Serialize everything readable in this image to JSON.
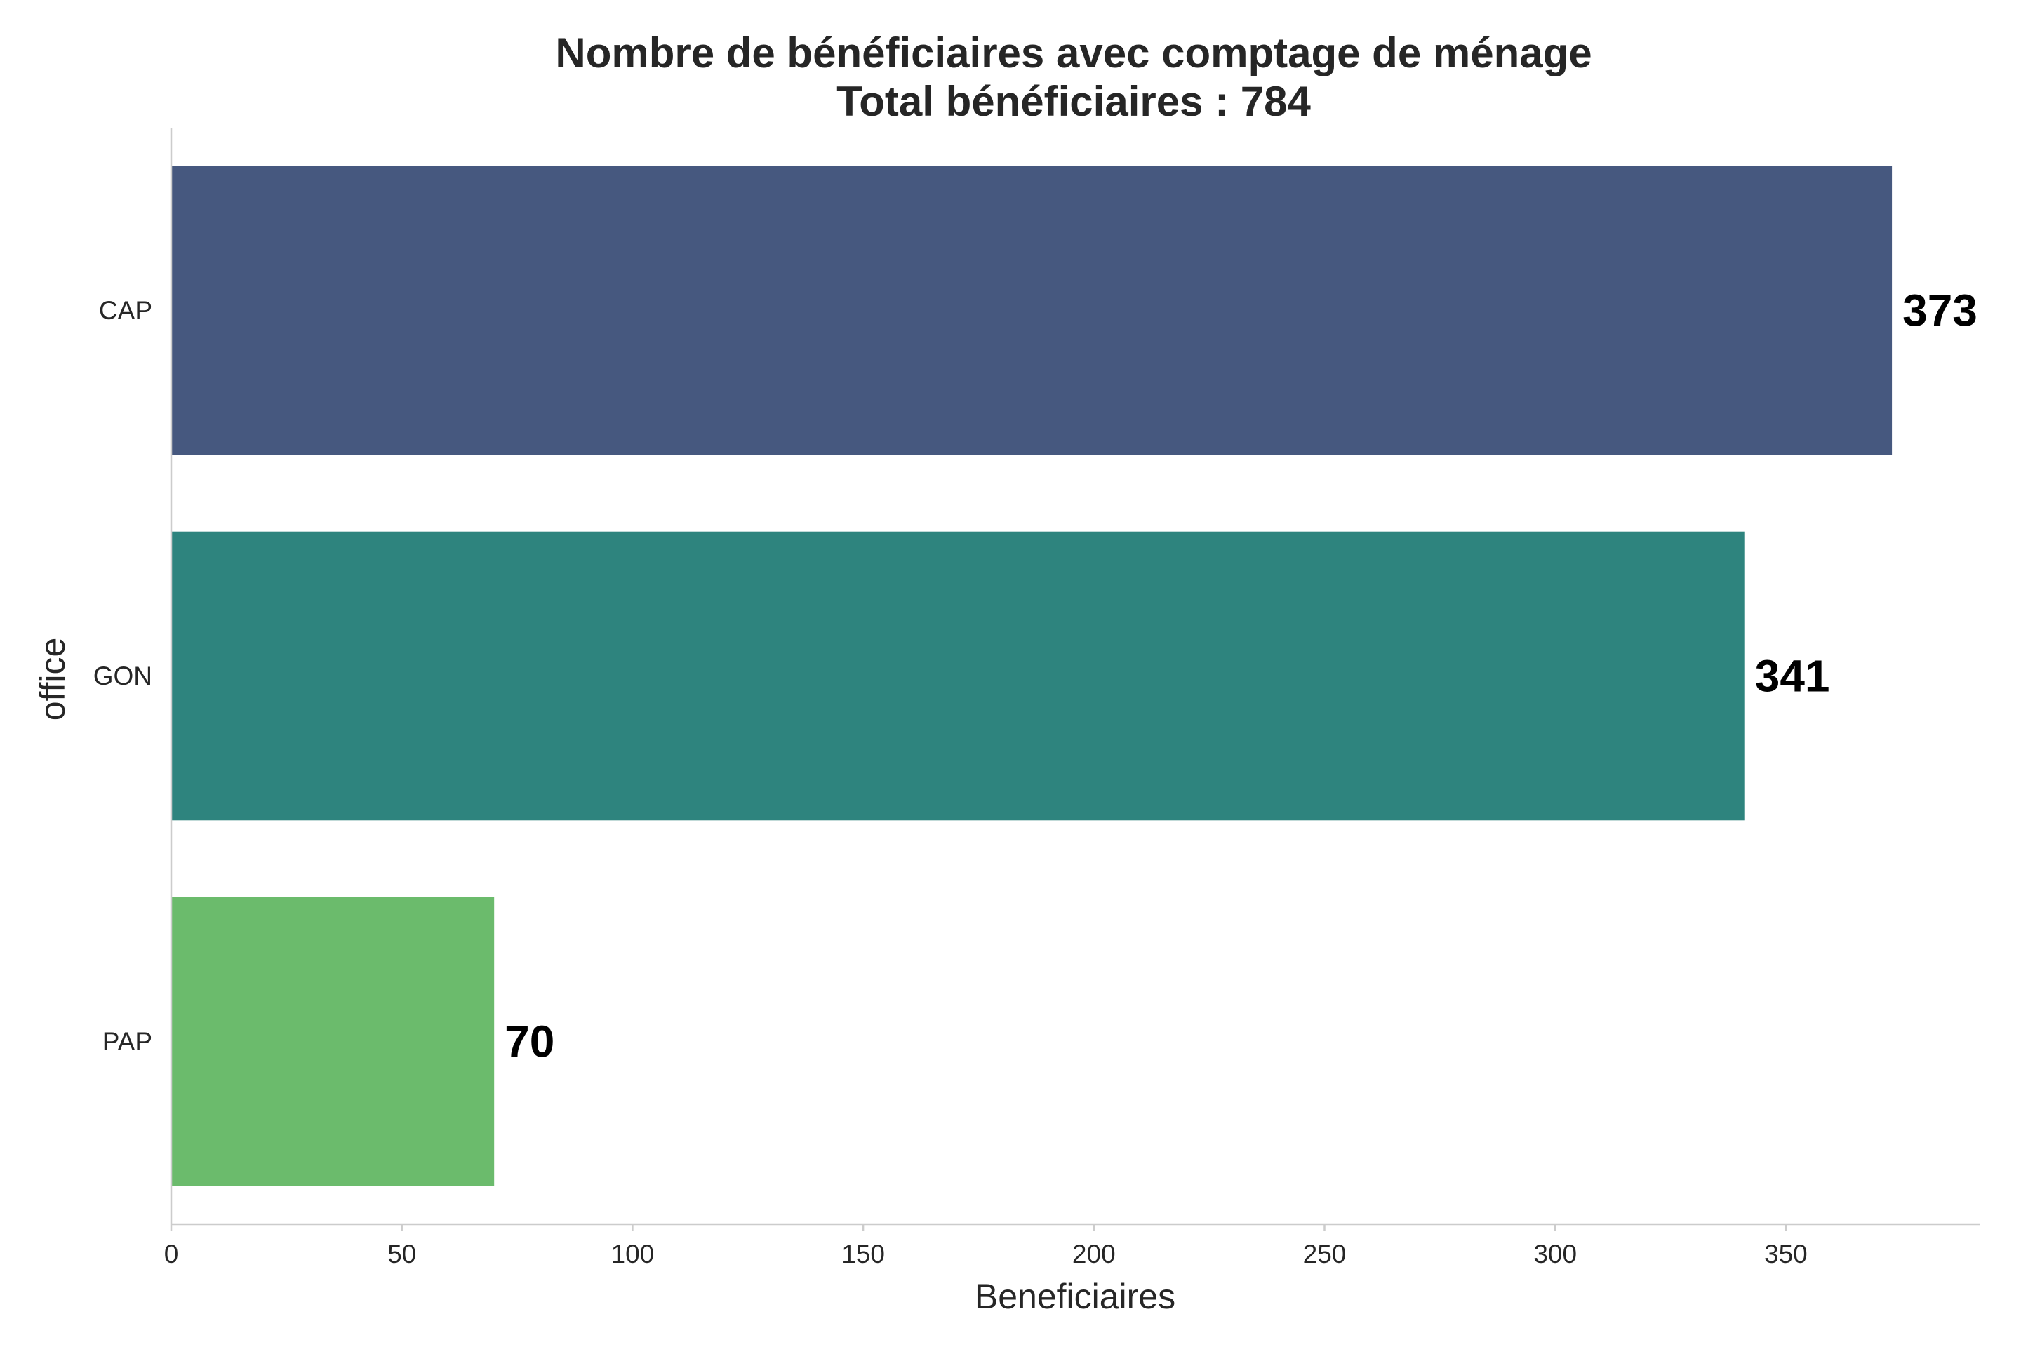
{
  "chart_data": {
    "type": "bar",
    "orientation": "horizontal",
    "title": "Nombre de bénéficiaires avec comptage de ménage",
    "subtitle": "Total bénéficiaires : 784",
    "xlabel": "Beneficiaires",
    "ylabel": "office",
    "categories": [
      "CAP",
      "GON",
      "PAP"
    ],
    "values": [
      373,
      341,
      70
    ],
    "value_labels": [
      "373",
      "341",
      "70"
    ],
    "colors": [
      "#46587f",
      "#2e847e",
      "#6bbb6c"
    ],
    "xlim": [
      0,
      392
    ],
    "xticks": [
      0,
      50,
      100,
      150,
      200,
      250,
      300,
      350
    ],
    "xtick_labels": [
      "0",
      "50",
      "100",
      "150",
      "200",
      "250",
      "300",
      "350"
    ],
    "grid": false
  }
}
